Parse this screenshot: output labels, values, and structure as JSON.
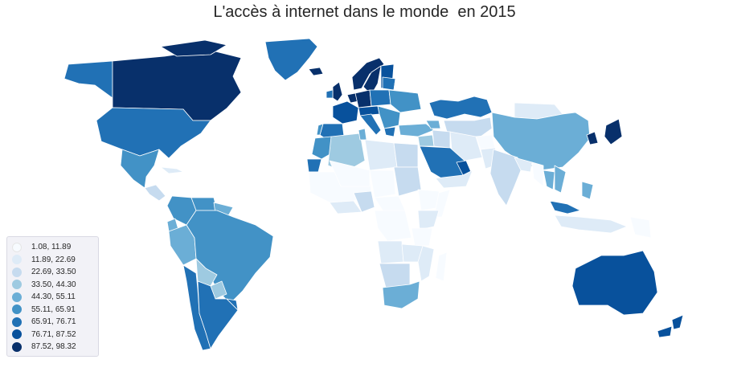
{
  "title": "L'accès à internet dans le monde  en 2015",
  "map_data": {
    "type": "choropleth",
    "metric": "internet access",
    "year": "2015",
    "colorscale": "Blues",
    "legend_position": "lower-left",
    "bins": [
      {
        "label": "1.08, 11.89",
        "color": "#f7fbff"
      },
      {
        "label": "11.89, 22.69",
        "color": "#deebf7"
      },
      {
        "label": "22.69, 33.50",
        "color": "#c6dbef"
      },
      {
        "label": "33.50, 44.30",
        "color": "#9ecae1"
      },
      {
        "label": "44.30, 55.11",
        "color": "#6baed6"
      },
      {
        "label": "55.11, 65.91",
        "color": "#4292c6"
      },
      {
        "label": "65.91, 76.71",
        "color": "#2171b5"
      },
      {
        "label": "76.71, 87.52",
        "color": "#08519c"
      },
      {
        "label": "87.52, 98.32",
        "color": "#08306b"
      }
    ]
  }
}
